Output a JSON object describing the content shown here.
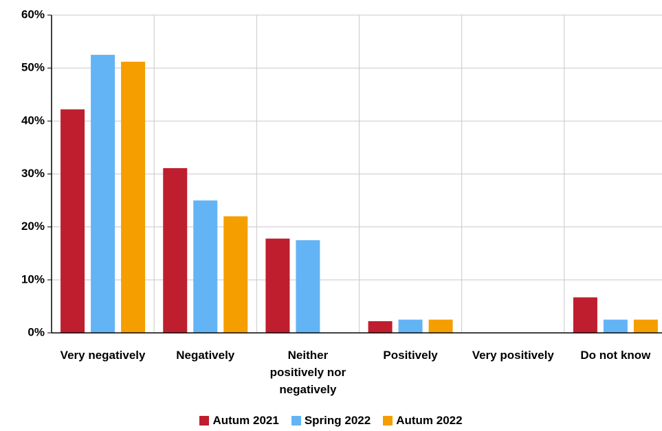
{
  "chart_data": {
    "type": "bar",
    "categories": [
      "Very negatively",
      "Negatively",
      "Neither positively nor negatively",
      "Positively",
      "Very positively",
      "Do not know"
    ],
    "series": [
      {
        "name": "Autum 2021",
        "color": "#be1e2d",
        "values": [
          42.2,
          31.1,
          17.8,
          2.2,
          0,
          6.7
        ]
      },
      {
        "name": "Spring 2022",
        "color": "#63b4f5",
        "values": [
          52.5,
          25,
          17.5,
          2.5,
          0,
          2.5
        ]
      },
      {
        "name": "Autum 2022",
        "color": "#f59e00",
        "values": [
          51.2,
          22,
          0,
          2.5,
          0,
          2.5
        ]
      }
    ],
    "ylim": [
      0,
      60
    ],
    "yticks": [
      {
        "value": 0,
        "label": "0%"
      },
      {
        "value": 10,
        "label": "10%"
      },
      {
        "value": 20,
        "label": "20%"
      },
      {
        "value": 30,
        "label": "30%"
      },
      {
        "value": 40,
        "label": "40%"
      },
      {
        "value": 50,
        "label": "50%"
      },
      {
        "value": 60,
        "label": "60%"
      }
    ],
    "grid": true,
    "legend": "bottom"
  }
}
